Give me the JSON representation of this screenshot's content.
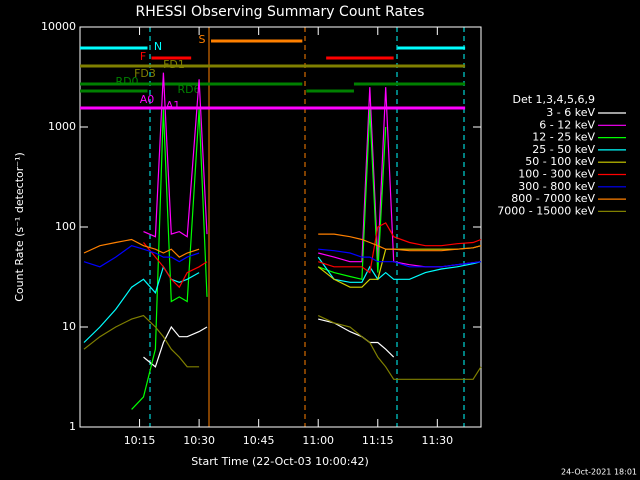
{
  "chart_data": {
    "type": "line",
    "title": "RHESSI Observing Summary Count Rates",
    "x_label": "Start Time (22-Oct-03 10:00:42)",
    "y_label": "Count Rate (s⁻¹ detector⁻¹)",
    "legend_title": "Det 1,3,4,5,6,9",
    "footer": "24-Oct-2021 18:01",
    "log_y": true,
    "xlim": [
      "10:00",
      "11:41"
    ],
    "xticks": [
      "10:15",
      "10:30",
      "10:45",
      "11:00",
      "11:15",
      "11:30"
    ],
    "ylim": [
      1,
      10000
    ],
    "yticks": [
      1,
      10,
      100,
      1000,
      10000
    ],
    "x": [
      "10:01",
      "10:05",
      "10:09",
      "10:13",
      "10:16",
      "10:19",
      "10:21",
      "10:23",
      "10:25",
      "10:27",
      "10:30",
      "10:32",
      "10:45",
      "11:00",
      "11:04",
      "11:08",
      "11:11",
      "11:13",
      "11:15",
      "11:17",
      "11:19",
      "11:23",
      "11:27",
      "11:31",
      "11:35",
      "11:39",
      "11:41"
    ],
    "series": [
      {
        "name": "3 - 6 keV",
        "color": "#ffffff",
        "values": [
          null,
          null,
          null,
          null,
          5,
          4,
          7,
          10,
          8,
          8,
          9,
          10,
          null,
          12,
          11,
          9,
          8,
          7,
          7,
          6,
          5,
          null,
          null,
          null,
          null,
          null,
          null
        ]
      },
      {
        "name": "6 - 12 keV",
        "color": "#ff00ff",
        "values": [
          null,
          null,
          null,
          null,
          90,
          80,
          3500,
          85,
          90,
          80,
          3000,
          85,
          null,
          55,
          50,
          45,
          45,
          2500,
          45,
          2500,
          45,
          42,
          40,
          40,
          42,
          44,
          45
        ]
      },
      {
        "name": "12 - 25 keV",
        "color": "#00ff00",
        "values": [
          null,
          null,
          null,
          1.5,
          2,
          6,
          1500,
          18,
          20,
          18,
          1500,
          20,
          null,
          40,
          35,
          32,
          30,
          1500,
          35,
          1000,
          null,
          null,
          null,
          null,
          null,
          null,
          null
        ]
      },
      {
        "name": "25 - 50 keV",
        "color": "#00ffff",
        "values": [
          7,
          10,
          15,
          25,
          30,
          22,
          40,
          30,
          28,
          30,
          35,
          null,
          null,
          50,
          30,
          28,
          28,
          40,
          30,
          35,
          30,
          30,
          35,
          38,
          40,
          43,
          45
        ]
      },
      {
        "name": "50 - 100 keV",
        "color": "#d2d200",
        "values": [
          null,
          null,
          null,
          null,
          null,
          null,
          null,
          null,
          null,
          null,
          null,
          null,
          null,
          40,
          30,
          25,
          25,
          30,
          30,
          60,
          60,
          60,
          60,
          60,
          60,
          62,
          65
        ]
      },
      {
        "name": "100 - 300 keV",
        "color": "#ff0000",
        "values": [
          null,
          null,
          null,
          null,
          70,
          50,
          40,
          30,
          25,
          35,
          40,
          45,
          null,
          45,
          40,
          40,
          40,
          35,
          100,
          110,
          80,
          70,
          65,
          65,
          68,
          70,
          75
        ]
      },
      {
        "name": "300 - 800 keV",
        "color": "#0000ff",
        "values": [
          45,
          40,
          50,
          65,
          60,
          55,
          50,
          50,
          45,
          50,
          55,
          null,
          null,
          60,
          58,
          55,
          50,
          50,
          45,
          45,
          45,
          40,
          40,
          40,
          42,
          44,
          45
        ]
      },
      {
        "name": "800 - 7000 keV",
        "color": "#ff8000",
        "values": [
          55,
          65,
          70,
          75,
          65,
          60,
          55,
          60,
          50,
          55,
          60,
          null,
          null,
          85,
          85,
          80,
          75,
          70,
          65,
          60,
          60,
          58,
          58,
          58,
          60,
          62,
          65
        ]
      },
      {
        "name": "7000 - 15000 keV",
        "color": "#808000",
        "values": [
          6,
          8,
          10,
          12,
          13,
          10,
          8,
          6,
          5,
          4,
          4,
          null,
          null,
          13,
          11,
          10,
          8,
          7,
          5,
          4,
          3,
          3,
          3,
          3,
          3,
          3,
          4
        ]
      }
    ],
    "flags": [
      {
        "label": "N",
        "color": "#00ffff",
        "spans": [
          [
            "10:00",
            "10:17"
          ],
          [
            "11:20",
            "11:37"
          ]
        ]
      },
      {
        "label": "S",
        "color": "#ff8000",
        "spans": [
          [
            "10:33",
            "10:56"
          ]
        ]
      },
      {
        "label": "F",
        "color": "#ff0000",
        "spans": [
          [
            "10:18",
            "10:28"
          ],
          [
            "11:02",
            "11:19"
          ]
        ]
      },
      {
        "label": "FD1",
        "color": "#808000",
        "spans": [
          [
            "10:00",
            "11:37"
          ]
        ]
      },
      {
        "label": "FD3",
        "color": "#808000",
        "spans": []
      },
      {
        "label": "RD0",
        "color": "#008000",
        "spans": [
          [
            "10:00",
            "10:56"
          ],
          [
            "11:09",
            "11:37"
          ]
        ]
      },
      {
        "label": "RD6",
        "color": "#008000",
        "spans": [
          [
            "10:00",
            "10:17"
          ],
          [
            "10:57",
            "11:09"
          ]
        ]
      },
      {
        "label": "A0",
        "color": "#ff00ff",
        "spans": [
          [
            "10:00",
            "11:37"
          ]
        ]
      },
      {
        "label": "A1",
        "color": "#ff00ff",
        "spans": []
      }
    ]
  }
}
